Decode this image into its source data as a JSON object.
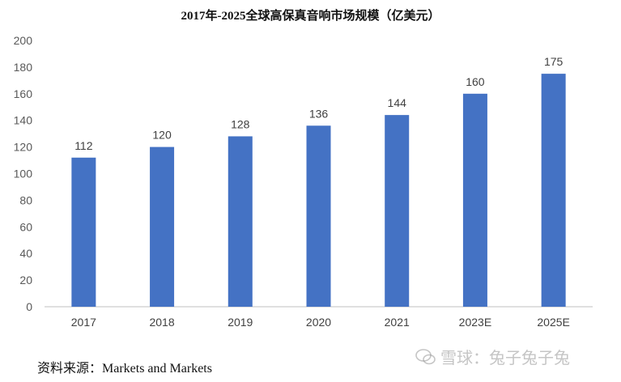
{
  "chart_data": {
    "type": "bar",
    "title": "2017年-2025全球高保真音响市场规模（亿美元）",
    "categories": [
      "2017",
      "2018",
      "2019",
      "2020",
      "2021",
      "2023E",
      "2025E"
    ],
    "values": [
      112,
      120,
      128,
      136,
      144,
      160,
      175
    ],
    "data_labels": [
      "112",
      "120",
      "128",
      "136",
      "144",
      "160",
      "175"
    ],
    "ylim": [
      0,
      200
    ],
    "yticks": [
      0,
      20,
      40,
      60,
      80,
      100,
      120,
      140,
      160,
      180,
      200
    ],
    "ytick_labels": [
      "0",
      "20",
      "40",
      "60",
      "80",
      "100",
      "120",
      "140",
      "160",
      "180",
      "200"
    ],
    "grid": false,
    "legend": "none",
    "bar_color": "#4472C4"
  },
  "source": "资料来源：Markets and Markets",
  "watermark": {
    "text": "雪球：兔子兔子兔",
    "icon": "wechat-chat-bubble-icon"
  }
}
